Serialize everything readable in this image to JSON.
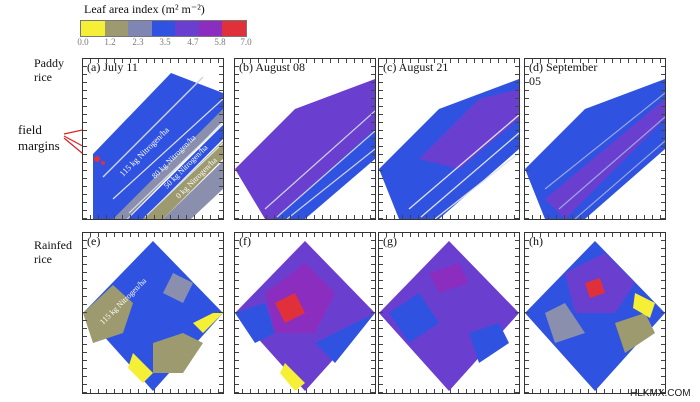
{
  "legend": {
    "title": "Leaf area index (m² m⁻²)",
    "ticks": [
      "0.0",
      "1.2",
      "2.3",
      "3.5",
      "4.7",
      "5.8",
      "7.0"
    ],
    "colors": [
      "#f5ef35",
      "#9c9a6e",
      "#8a8fae",
      "#2f52e0",
      "#6a3fd0",
      "#8b2ec0",
      "#e0303a"
    ]
  },
  "rows": {
    "paddy": "Paddy rice",
    "rainfed": "Rainfed rice"
  },
  "annotation": {
    "field_margins": "field margins"
  },
  "panels": {
    "a": "(a) July 11",
    "b": "(b) August 08",
    "c": "(c) August 21",
    "d": "(d) September 05",
    "e": "(e)",
    "f": "(f)",
    "g": "(g)",
    "h": "(h)"
  },
  "strip_labels": {
    "s115": "115 kg Nitrogen/ha",
    "s80": "80 kg Nitrogen/ha",
    "s50": "50 kg Nitrogen/ha",
    "s0": "0 kg Nitrogen/ha",
    "rainfed115": "115 kg Nitrogen/ha"
  },
  "watermark": "HLKMX.COM"
}
